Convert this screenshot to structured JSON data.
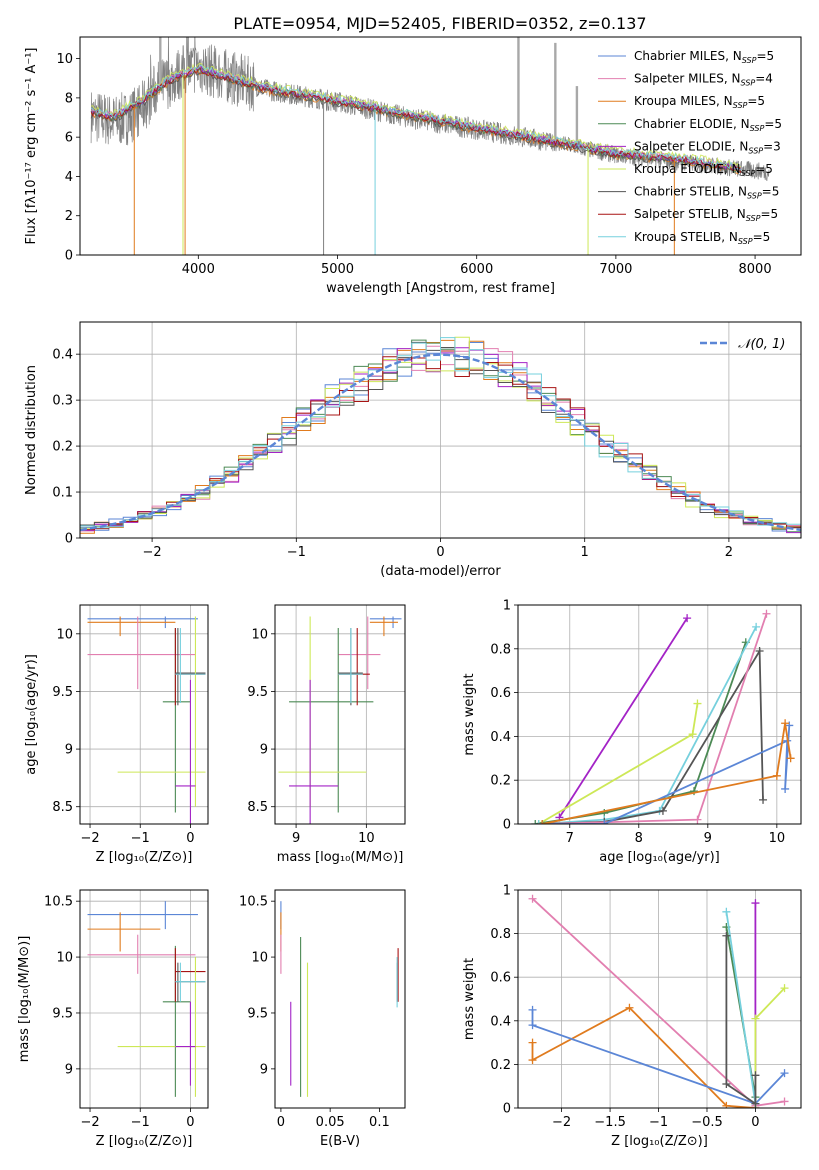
{
  "figure": {
    "title": "PLATE=0954, MJD=52405, FIBERID=0352, z=0.137"
  },
  "models": [
    {
      "key": "cm",
      "name": "Chabrier MILES, N",
      "sup": "SSP",
      "tail": "=5",
      "color": "#5b86d6"
    },
    {
      "key": "sm",
      "name": "Salpeter MILES, N",
      "sup": "SSP",
      "tail": "=4",
      "color": "#e27fb0"
    },
    {
      "key": "km",
      "name": "Kroupa MILES, N",
      "sup": "SSP",
      "tail": "=5",
      "color": "#e07b1e"
    },
    {
      "key": "ce",
      "name": "Chabrier ELODIE, N",
      "sup": "SSP",
      "tail": "=5",
      "color": "#4c8a55"
    },
    {
      "key": "se",
      "name": "Salpeter ELODIE, N",
      "sup": "SSP",
      "tail": "=3",
      "color": "#a323c6"
    },
    {
      "key": "ke",
      "name": "Kroupa ELODIE, N",
      "sup": "SSP",
      "tail": "=5",
      "color": "#cde857"
    },
    {
      "key": "cs",
      "name": "Chabrier STELIB, N",
      "sup": "SSP",
      "tail": "=5",
      "color": "#555555"
    },
    {
      "key": "ss",
      "name": "Salpeter STELIB, N",
      "sup": "SSP",
      "tail": "=5",
      "color": "#a81414"
    },
    {
      "key": "ks",
      "name": "Kroupa STELIB, N",
      "sup": "SSP",
      "tail": "=5",
      "color": "#76d0dd"
    }
  ],
  "chart_data": [
    {
      "id": "spectrum",
      "type": "line",
      "xlabel": "wavelength [Angstrom, rest frame]",
      "ylabel": "Flux [fλ10⁻¹⁷ erg cm⁻² s⁻¹ A⁻¹]",
      "xlim": [
        3150,
        8330
      ],
      "ylim": [
        0,
        11.1
      ],
      "xticks": [
        4000,
        5000,
        6000,
        7000,
        8000
      ],
      "yticks": [
        0,
        2,
        4,
        6,
        8,
        10
      ],
      "grid": false,
      "legend": "top-right",
      "data_color": "#808080",
      "model_x": [
        3230,
        3400,
        3600,
        3800,
        4000,
        4500,
        5000,
        5500,
        6000,
        6500,
        7000,
        7500,
        7900
      ],
      "model_y": [
        7.2,
        7.0,
        7.8,
        8.9,
        9.4,
        8.4,
        7.8,
        7.1,
        6.4,
        5.8,
        5.1,
        4.8,
        4.3
      ],
      "data_x": [
        3230,
        3400,
        3500,
        3600,
        3700,
        3800,
        3900,
        4000,
        4500,
        5000,
        5500,
        6000,
        6500,
        7000,
        7500,
        8000,
        8100
      ],
      "data_y": [
        7.1,
        6.8,
        7.0,
        7.5,
        8.5,
        8.9,
        9.4,
        9.6,
        8.4,
        7.8,
        7.0,
        6.4,
        5.8,
        5.1,
        4.7,
        4.3,
        4.2
      ]
    },
    {
      "id": "residuals",
      "type": "bar",
      "xlabel": "(data-model)/error",
      "ylabel": "Normed distribution",
      "xlim": [
        -2.5,
        2.5
      ],
      "ylim": [
        0,
        0.47
      ],
      "xticks": [
        -2,
        -1,
        0,
        1,
        2
      ],
      "yticks": [
        0.0,
        0.1,
        0.2,
        0.3,
        0.4
      ],
      "grid": true,
      "legend": "top-right",
      "legend_label": "𝒩(0, 1)",
      "gauss_color": "#5b86d6",
      "bins": 50
    },
    {
      "id": "age_vs_Z",
      "type": "scatter",
      "xlabel": "Z [log₁₀(Z/Z⊙)]",
      "ylabel": "age  [log₁₀(age/yr)]",
      "xlim": [
        -2.2,
        0.35
      ],
      "ylim": [
        8.35,
        10.25
      ],
      "xticks": [
        -2,
        -1,
        0
      ],
      "yticks": [
        8.5,
        9.0,
        9.5,
        10.0
      ],
      "grid": true,
      "points": [
        {
          "m": "cm",
          "x": -0.5,
          "xe": [
            -2.05,
            0.15
          ],
          "y": 10.13,
          "ye": [
            10.05,
            10.15
          ]
        },
        {
          "m": "km",
          "x": -1.4,
          "xe": [
            -2.05,
            -0.3
          ],
          "y": 10.1,
          "ye": [
            9.98,
            10.15
          ]
        },
        {
          "m": "sm",
          "x": -1.05,
          "xe": [
            -2.05,
            0.1
          ],
          "y": 9.82,
          "ye": [
            9.52,
            10.15
          ]
        },
        {
          "m": "ce",
          "x": -0.3,
          "xe": [
            -0.55,
            0.0
          ],
          "y": 9.41,
          "ye": [
            8.45,
            10.05
          ]
        },
        {
          "m": "ss",
          "x": -0.3,
          "xe": [
            -0.3,
            0.3
          ],
          "y": 9.65,
          "ye": [
            9.38,
            10.05
          ]
        },
        {
          "m": "cs",
          "x": -0.25,
          "xe": [
            -0.3,
            0.3
          ],
          "y": 9.66,
          "ye": [
            9.38,
            10.05
          ]
        },
        {
          "m": "ke",
          "x": 0.1,
          "xe": [
            -1.45,
            0.3
          ],
          "y": 8.8,
          "ye": [
            8.5,
            10.15
          ]
        },
        {
          "m": "se",
          "x": 0.0,
          "xe": [
            -0.3,
            0.1
          ],
          "y": 8.68,
          "ye": [
            8.35,
            9.6
          ]
        },
        {
          "m": "ks",
          "x": -0.2,
          "xe": [
            -0.3,
            0.3
          ],
          "y": 9.65,
          "ye": [
            9.4,
            10.05
          ]
        }
      ]
    },
    {
      "id": "age_vs_mass",
      "type": "scatter",
      "xlabel": "mass [log₁₀(M/M⊙)]",
      "ylabel": "",
      "xlim": [
        8.7,
        10.55
      ],
      "ylim": [
        8.35,
        10.25
      ],
      "xticks": [
        9,
        10
      ],
      "yticks": [
        8.5,
        9.0,
        9.5,
        10.0
      ],
      "grid": true,
      "points": [
        {
          "m": "cm",
          "x": 10.38,
          "xe": [
            10.05,
            10.5
          ],
          "y": 10.13,
          "ye": [
            10.05,
            10.15
          ]
        },
        {
          "m": "km",
          "x": 10.25,
          "xe": [
            10.05,
            10.45
          ],
          "y": 10.1,
          "ye": [
            9.98,
            10.15
          ]
        },
        {
          "m": "sm",
          "x": 10.02,
          "xe": [
            9.6,
            10.2
          ],
          "y": 9.82,
          "ye": [
            9.52,
            10.15
          ]
        },
        {
          "m": "ce",
          "x": 9.6,
          "xe": [
            8.9,
            10.1
          ],
          "y": 9.41,
          "ye": [
            8.45,
            10.05
          ]
        },
        {
          "m": "ss",
          "x": 9.87,
          "xe": [
            9.6,
            10.05
          ],
          "y": 9.65,
          "ye": [
            9.38,
            10.05
          ]
        },
        {
          "m": "cs",
          "x": 9.78,
          "xe": [
            9.6,
            9.95
          ],
          "y": 9.66,
          "ye": [
            9.38,
            10.05
          ]
        },
        {
          "m": "ke",
          "x": 9.2,
          "xe": [
            8.75,
            10.0
          ],
          "y": 8.8,
          "ye": [
            8.5,
            10.15
          ]
        },
        {
          "m": "se",
          "x": 9.2,
          "xe": [
            8.9,
            9.6
          ],
          "y": 8.68,
          "ye": [
            8.35,
            9.6
          ]
        },
        {
          "m": "ks",
          "x": 9.78,
          "xe": [
            9.6,
            9.95
          ],
          "y": 9.65,
          "ye": [
            9.4,
            10.05
          ]
        }
      ]
    },
    {
      "id": "weight_vs_age",
      "type": "line",
      "xlabel": "age  [log₁₀(age/yr)]",
      "ylabel": "mass weight",
      "xlim": [
        6.25,
        10.35
      ],
      "ylim": [
        0,
        1.0
      ],
      "xticks": [
        7,
        8,
        9,
        10
      ],
      "yticks": [
        0.0,
        0.2,
        0.4,
        0.6,
        0.8,
        1.0
      ],
      "grid": true,
      "series": [
        {
          "m": "se",
          "x": [
            6.85,
            8.7
          ],
          "y": [
            0.03,
            0.94
          ]
        },
        {
          "m": "ke",
          "x": [
            6.55,
            8.78,
            8.85
          ],
          "y": [
            0.0,
            0.41,
            0.55
          ]
        },
        {
          "m": "ce",
          "x": [
            6.5,
            7.5,
            8.8,
            9.55
          ],
          "y": [
            0.0,
            0.05,
            0.15,
            0.83
          ]
        },
        {
          "m": "ks",
          "x": [
            6.55,
            7.5,
            8.3,
            9.7
          ],
          "y": [
            0.0,
            0.02,
            0.06,
            0.9
          ]
        },
        {
          "m": "cs",
          "x": [
            6.6,
            7.5,
            8.35,
            9.75,
            9.8
          ],
          "y": [
            0.0,
            0.01,
            0.06,
            0.79,
            0.11
          ]
        },
        {
          "m": "sm",
          "x": [
            6.6,
            8.85,
            9.85
          ],
          "y": [
            0.0,
            0.02,
            0.96
          ]
        },
        {
          "m": "cm",
          "x": [
            6.6,
            7.5,
            10.15,
            10.12,
            10.18
          ],
          "y": [
            0.0,
            0.0,
            0.38,
            0.16,
            0.45
          ]
        },
        {
          "m": "km",
          "x": [
            6.6,
            10.0,
            10.12,
            10.2
          ],
          "y": [
            0.0,
            0.22,
            0.46,
            0.3
          ]
        }
      ]
    },
    {
      "id": "mass_vs_Z",
      "type": "scatter",
      "xlabel": "Z [log₁₀(Z/Z⊙)]",
      "ylabel": "mass [log₁₀(M/M⊙)]",
      "xlim": [
        -2.2,
        0.35
      ],
      "ylim": [
        8.65,
        10.6
      ],
      "xticks": [
        -2,
        -1,
        0
      ],
      "yticks": [
        9.0,
        9.5,
        10.0,
        10.5
      ],
      "grid": true,
      "points": [
        {
          "m": "cm",
          "x": -0.5,
          "xe": [
            -2.05,
            0.15
          ],
          "y": 10.38,
          "ye": [
            10.25,
            10.5
          ]
        },
        {
          "m": "km",
          "x": -1.4,
          "xe": [
            -2.05,
            -0.6
          ],
          "y": 10.25,
          "ye": [
            10.05,
            10.4
          ]
        },
        {
          "m": "sm",
          "x": -1.05,
          "xe": [
            -2.05,
            0.1
          ],
          "y": 10.02,
          "ye": [
            9.85,
            10.2
          ]
        },
        {
          "m": "ce",
          "x": -0.3,
          "xe": [
            -0.55,
            0.0
          ],
          "y": 9.6,
          "ye": [
            8.75,
            10.1
          ]
        },
        {
          "m": "ss",
          "x": -0.3,
          "xe": [
            -0.3,
            0.3
          ],
          "y": 9.87,
          "ye": [
            9.6,
            10.08
          ]
        },
        {
          "m": "cs",
          "x": -0.25,
          "xe": [
            -0.3,
            0.3
          ],
          "y": 9.78,
          "ye": [
            9.6,
            9.95
          ]
        },
        {
          "m": "ke",
          "x": 0.1,
          "xe": [
            -1.45,
            0.3
          ],
          "y": 9.2,
          "ye": [
            8.75,
            10.0
          ]
        },
        {
          "m": "se",
          "x": 0.0,
          "xe": [
            -0.3,
            0.1
          ],
          "y": 9.2,
          "ye": [
            8.85,
            9.6
          ]
        },
        {
          "m": "ks",
          "x": -0.2,
          "xe": [
            -0.3,
            0.3
          ],
          "y": 9.78,
          "ye": [
            9.6,
            9.95
          ]
        }
      ]
    },
    {
      "id": "mass_vs_EBV",
      "type": "scatter",
      "xlabel": "E(B-V)",
      "ylabel": "",
      "xlim": [
        -0.006,
        0.126
      ],
      "ylim": [
        8.65,
        10.6
      ],
      "xticks": [
        0.0,
        0.05,
        0.1
      ],
      "yticks": [
        9.0,
        9.5,
        10.0,
        10.5
      ],
      "grid": false,
      "points": [
        {
          "m": "cm",
          "x": 0.0,
          "xe": [
            0.0,
            0.0
          ],
          "y": 10.38,
          "ye": [
            10.25,
            10.5
          ]
        },
        {
          "m": "km",
          "x": 0.0,
          "xe": [
            0.0,
            0.0
          ],
          "y": 10.25,
          "ye": [
            10.05,
            10.4
          ]
        },
        {
          "m": "sm",
          "x": 0.0,
          "xe": [
            0.0,
            0.0
          ],
          "y": 10.02,
          "ye": [
            9.85,
            10.2
          ]
        },
        {
          "m": "ce",
          "x": 0.02,
          "xe": [
            0.02,
            0.02
          ],
          "y": 9.6,
          "ye": [
            8.75,
            10.18
          ]
        },
        {
          "m": "se",
          "x": 0.01,
          "xe": [
            0.01,
            0.01
          ],
          "y": 9.2,
          "ye": [
            8.85,
            9.6
          ]
        },
        {
          "m": "ke",
          "x": 0.027,
          "xe": [
            0.027,
            0.027
          ],
          "y": 9.2,
          "ye": [
            8.75,
            9.95
          ]
        },
        {
          "m": "ss",
          "x": 0.119,
          "xe": [
            0.119,
            0.119
          ],
          "y": 9.87,
          "ye": [
            9.6,
            10.08
          ]
        },
        {
          "m": "cs",
          "x": 0.118,
          "xe": [
            0.118,
            0.118
          ],
          "y": 9.78,
          "ye": [
            9.6,
            9.95
          ]
        },
        {
          "m": "ks",
          "x": 0.118,
          "xe": [
            0.118,
            0.118
          ],
          "y": 9.78,
          "ye": [
            9.55,
            10.0
          ]
        }
      ]
    },
    {
      "id": "weight_vs_Z",
      "type": "line",
      "xlabel": "Z [log₁₀(Z/Z⊙)]",
      "ylabel": "mass weight",
      "xlim": [
        -2.45,
        0.47
      ],
      "ylim": [
        0,
        1.0
      ],
      "xticks": [
        -2.0,
        -1.5,
        -1.0,
        -0.5,
        0.0
      ],
      "yticks": [
        0.0,
        0.2,
        0.4,
        0.6,
        0.8,
        1.0
      ],
      "grid": true,
      "series": [
        {
          "m": "sm",
          "x": [
            -2.3,
            0.0,
            0.3
          ],
          "y": [
            0.96,
            0.01,
            0.03
          ]
        },
        {
          "m": "km",
          "x": [
            -2.3,
            -2.3,
            -1.3,
            -0.3,
            0.0
          ],
          "y": [
            0.3,
            0.22,
            0.46,
            0.01,
            0.0
          ]
        },
        {
          "m": "cm",
          "x": [
            -2.3,
            -2.3,
            0.0,
            0.3
          ],
          "y": [
            0.45,
            0.38,
            0.02,
            0.16
          ]
        },
        {
          "m": "se",
          "x": [
            0.0,
            0.0
          ],
          "y": [
            0.94,
            0.0
          ]
        },
        {
          "m": "ke",
          "x": [
            0.0,
            0.0,
            0.3
          ],
          "y": [
            0.0,
            0.41,
            0.55
          ]
        },
        {
          "m": "ce",
          "x": [
            -0.3,
            0.0
          ],
          "y": [
            0.83,
            0.05
          ]
        },
        {
          "m": "ks",
          "x": [
            -0.3,
            0.0
          ],
          "y": [
            0.9,
            0.02
          ]
        },
        {
          "m": "cs",
          "x": [
            -0.3,
            -0.3,
            0.0,
            0.0
          ],
          "y": [
            0.79,
            0.11,
            0.02,
            0.15
          ]
        }
      ]
    }
  ]
}
